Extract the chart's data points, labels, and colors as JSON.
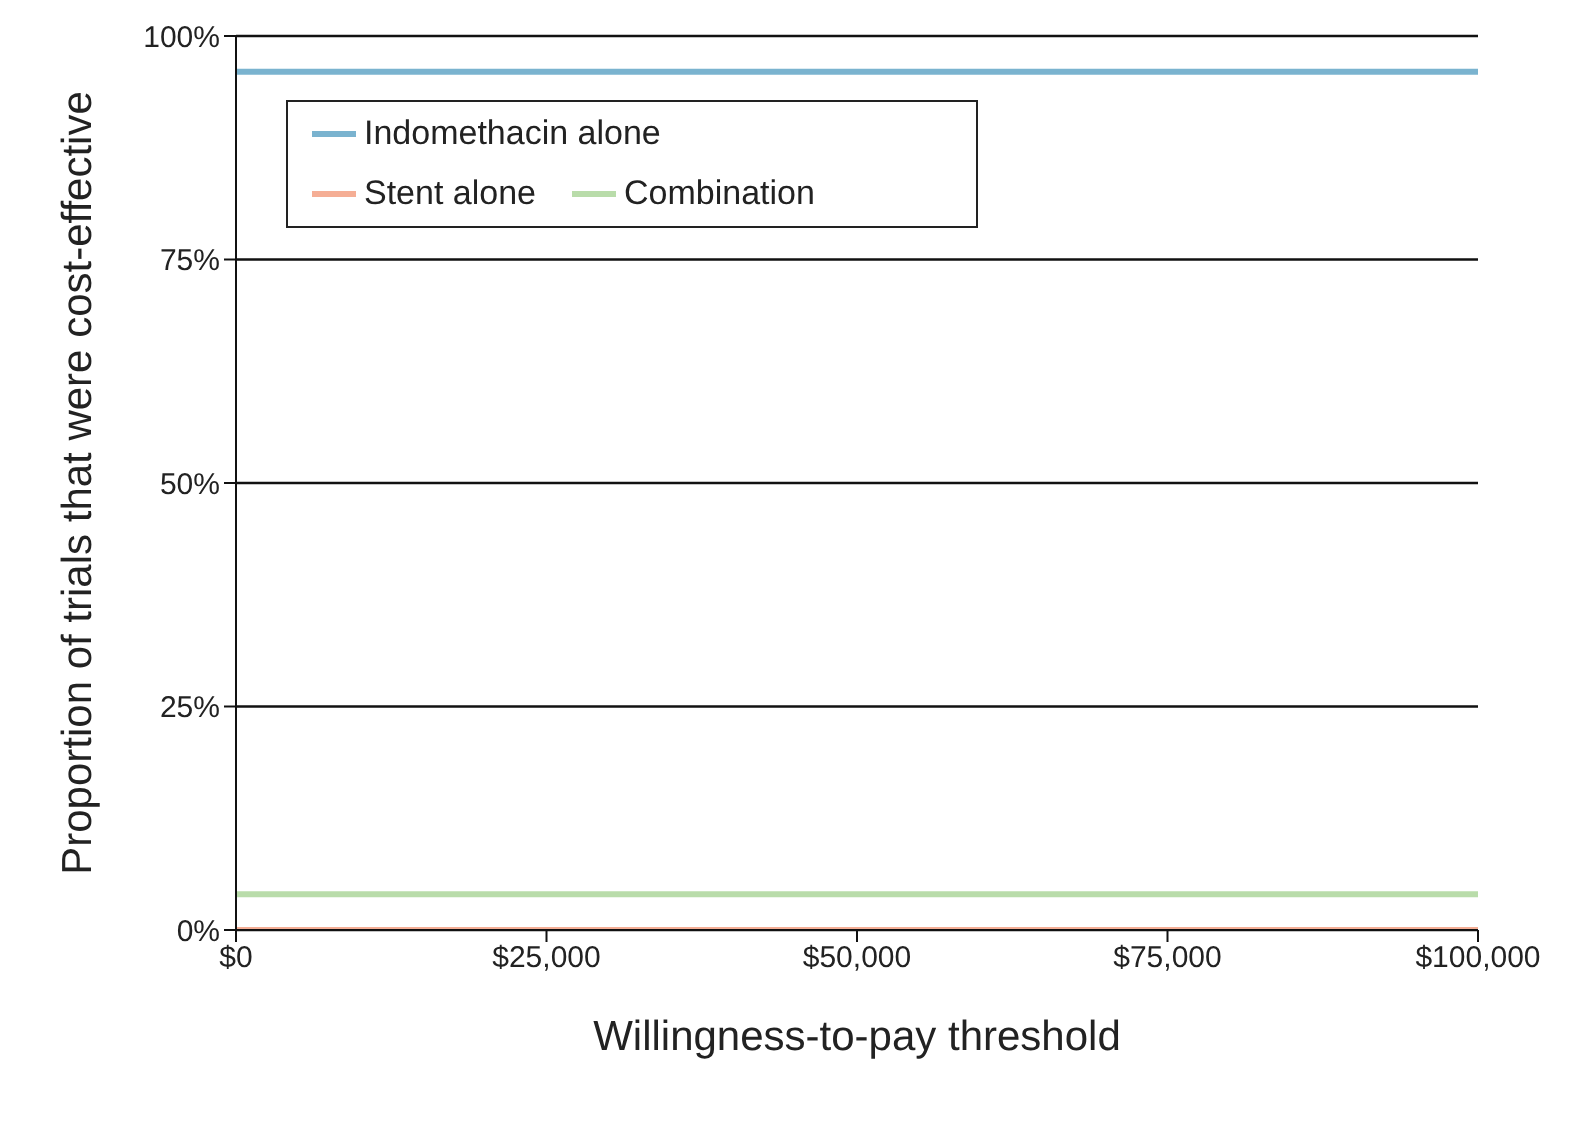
{
  "chart_data": {
    "type": "line",
    "xlabel": "Willingness-to-pay threshold",
    "ylabel": "Proportion of trials that were cost-effective",
    "x": [
      0,
      100000
    ],
    "series": [
      {
        "name": "Indomethacin alone",
        "color": "#7ab3cf",
        "values": [
          96,
          96
        ]
      },
      {
        "name": "Stent alone",
        "color": "#f5ae95",
        "values": [
          0,
          0
        ]
      },
      {
        "name": "Combination",
        "color": "#b9dcaa",
        "values": [
          4,
          4
        ]
      }
    ],
    "xlim": [
      0,
      100000
    ],
    "xticks": [
      {
        "value": 0,
        "label": "$0"
      },
      {
        "value": 25000,
        "label": "$25,000"
      },
      {
        "value": 50000,
        "label": "$50,000"
      },
      {
        "value": 75000,
        "label": "$75,000"
      },
      {
        "value": 100000,
        "label": "$100,000"
      }
    ],
    "ylim": [
      0,
      100
    ],
    "yticks": [
      {
        "value": 0,
        "label": "0%"
      },
      {
        "value": 25,
        "label": "25%"
      },
      {
        "value": 50,
        "label": "50%"
      },
      {
        "value": 75,
        "label": "75%"
      },
      {
        "value": 100,
        "label": "100%"
      }
    ],
    "grid": "y",
    "legend": "top left",
    "marker": "none",
    "line_style": "solid"
  }
}
